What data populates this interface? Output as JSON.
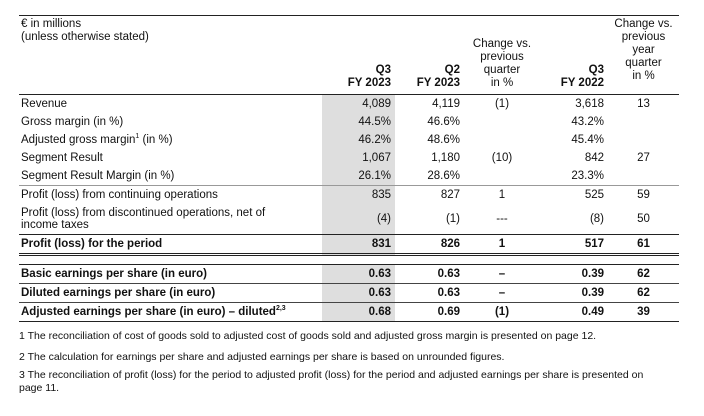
{
  "header": {
    "unit_line1": "€ in millions",
    "unit_line2": "(unless otherwise stated)",
    "col_q3_line1": "Q3",
    "col_q3_line2": "FY 2023",
    "col_q2_line1": "Q2",
    "col_q2_line2": "FY 2023",
    "col_change_q_line1": "Change vs.",
    "col_change_q_line2": "previous",
    "col_change_q_line3": "quarter",
    "col_change_q_line4": "in %",
    "col_q3prev_line1": "Q3",
    "col_q3prev_line2": "FY 2022",
    "col_change_y_line1": "Change vs.",
    "col_change_y_line2": "previous",
    "col_change_y_line3": "year",
    "col_change_y_line4": "quarter",
    "col_change_y_line5": "in %"
  },
  "rows": [
    {
      "label": "Revenue",
      "q3": "4,089",
      "q2": "4,119",
      "chg_q": "(1)",
      "q3p": "3,618",
      "chg_y": "13"
    },
    {
      "label": "Gross margin (in %)",
      "q3": "44.5%",
      "q2": "46.6%",
      "chg_q": "",
      "q3p": "43.2%",
      "chg_y": ""
    },
    {
      "label": "Adjusted gross margin",
      "label_sup": "1",
      "label_suffix": " (in %)",
      "q3": "46.2%",
      "q2": "48.6%",
      "chg_q": "",
      "q3p": "45.4%",
      "chg_y": ""
    },
    {
      "label": "Segment Result",
      "q3": "1,067",
      "q2": "1,180",
      "chg_q": "(10)",
      "q3p": "842",
      "chg_y": "27"
    },
    {
      "label": "Segment Result Margin (in %)",
      "q3": "26.1%",
      "q2": "28.6%",
      "chg_q": "",
      "q3p": "23.3%",
      "chg_y": ""
    },
    {
      "label": "Profit (loss) from continuing operations",
      "q3": "835",
      "q2": "827",
      "chg_q": "1",
      "q3p": "525",
      "chg_y": "59"
    },
    {
      "label_line1": "Profit (loss) from discontinued operations, net of",
      "label_line2": "income taxes",
      "q3": "(4)",
      "q2": "(1)",
      "chg_q": "---",
      "q3p": "(8)",
      "chg_y": "50"
    },
    {
      "label": "Profit (loss) for the period",
      "q3": "831",
      "q2": "826",
      "chg_q": "1",
      "q3p": "517",
      "chg_y": "61"
    },
    {
      "label": "Basic earnings per share (in euro)",
      "q3": "0.63",
      "q2": "0.63",
      "chg_q": "–",
      "q3p": "0.39",
      "chg_y": "62"
    },
    {
      "label": "Diluted earnings per share (in euro)",
      "q3": "0.63",
      "q2": "0.63",
      "chg_q": "–",
      "q3p": "0.39",
      "chg_y": "62"
    },
    {
      "label": "Adjusted earnings per share (in euro) – diluted",
      "label_sup": "2,3",
      "q3": "0.68",
      "q2": "0.69",
      "chg_q": "(1)",
      "q3p": "0.49",
      "chg_y": "39"
    }
  ],
  "footnotes": {
    "f1": "1 The reconciliation of cost of goods sold to adjusted cost of goods sold and adjusted gross margin is presented on page 12.",
    "f2": "2 The calculation for earnings per share and adjusted earnings per share is based on unrounded figures.",
    "f3_line1": "3 The reconciliation of profit (loss) for the period to adjusted profit (loss) for the period and adjusted earnings per share is presented on",
    "f3_line2": "page 11."
  }
}
